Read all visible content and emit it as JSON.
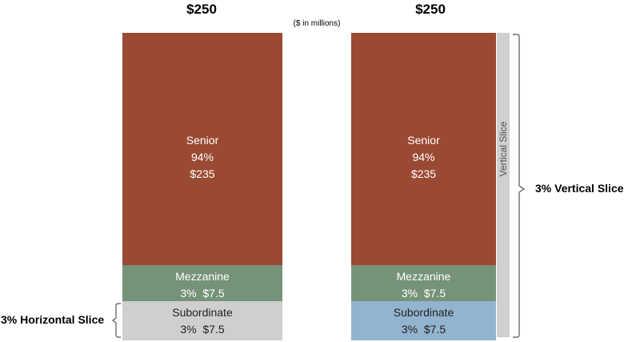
{
  "header": {
    "left_total": "$250",
    "right_total": "$250",
    "units_note": "($ in millions)"
  },
  "left_stack": {
    "senior": {
      "name": "Senior",
      "pct": "94%",
      "amount": "$235"
    },
    "mezzanine": {
      "name": "Mezzanine",
      "pct_amount": "3%  $7.5"
    },
    "subordinate": {
      "name": "Subordinate",
      "pct_amount": "3%  $7.5"
    }
  },
  "right_stack": {
    "senior": {
      "name": "Senior",
      "pct": "94%",
      "amount": "$235"
    },
    "mezzanine": {
      "name": "Mezzanine",
      "pct_amount": "3%  $7.5"
    },
    "subordinate": {
      "name": "Subordinate",
      "pct_amount": "3%  $7.5"
    },
    "vertical_slice_label": "Vertical Slice"
  },
  "annotations": {
    "horizontal_slice": "3% Horizontal Slice",
    "vertical_slice": "3% Vertical Slice"
  },
  "colors": {
    "senior": "#9a4a33",
    "mezzanine": "#76937a",
    "subordinate_left": "#cfcfcf",
    "subordinate_right": "#93b4cf",
    "vertical_slice": "#cfcfcf"
  }
}
